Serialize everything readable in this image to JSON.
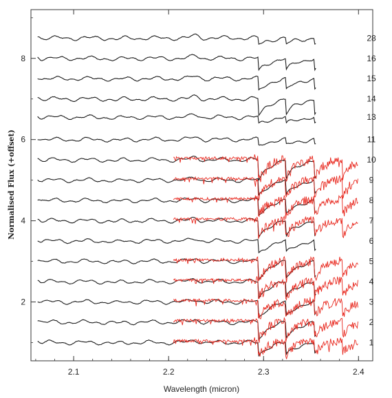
{
  "chart_data": {
    "type": "line",
    "xlabel": "Wavelength (micron)",
    "ylabel": "Normalised Flux (+offset)",
    "xlim": [
      2.055,
      2.415
    ],
    "ylim": [
      0.55,
      9.2
    ],
    "x_ticks": [
      2.1,
      2.2,
      2.3,
      2.4
    ],
    "x_tick_labels": [
      "2.1",
      "2.2",
      "2.3",
      "2.4"
    ],
    "y_ticks": [
      2,
      4,
      6,
      8
    ],
    "y_tick_labels": [
      "2",
      "4",
      "6",
      "8"
    ],
    "grid": false,
    "colors": {
      "model": "#1a1a1a",
      "observed": "#e8261c"
    },
    "black_range": [
      2.062,
      2.355
    ],
    "red_range": [
      2.205,
      2.4
    ],
    "spectra": [
      {
        "label": "28",
        "offset": 8.5,
        "black_depth": 0.18,
        "has_red": false
      },
      {
        "label": "16",
        "offset": 8.0,
        "black_depth": 0.35,
        "has_red": false
      },
      {
        "label": "15",
        "offset": 7.5,
        "black_depth": 0.35,
        "has_red": false
      },
      {
        "label": "14",
        "offset": 7.0,
        "black_depth": 0.45,
        "has_red": false
      },
      {
        "label": "13",
        "offset": 6.55,
        "black_depth": 0.2,
        "has_red": false
      },
      {
        "label": "11",
        "offset": 6.0,
        "black_depth": 0.18,
        "has_red": false
      },
      {
        "label": "10",
        "offset": 5.5,
        "black_depth": 0.55,
        "has_red": true
      },
      {
        "label": "9",
        "offset": 5.0,
        "black_depth": 0.45,
        "has_red": true
      },
      {
        "label": "8",
        "offset": 4.5,
        "black_depth": 0.42,
        "has_red": true
      },
      {
        "label": "7",
        "offset": 4.0,
        "black_depth": 0.45,
        "has_red": true
      },
      {
        "label": "6",
        "offset": 3.5,
        "black_depth": 0.35,
        "has_red": false
      },
      {
        "label": "5",
        "offset": 3.0,
        "black_depth": 0.5,
        "has_red": true
      },
      {
        "label": "4",
        "offset": 2.5,
        "black_depth": 0.45,
        "has_red": true
      },
      {
        "label": "3",
        "offset": 2.0,
        "black_depth": 0.45,
        "has_red": true
      },
      {
        "label": "2",
        "offset": 1.5,
        "black_depth": 0.45,
        "has_red": true
      },
      {
        "label": "1",
        "offset": 1.0,
        "black_depth": 0.35,
        "has_red": true
      }
    ]
  }
}
